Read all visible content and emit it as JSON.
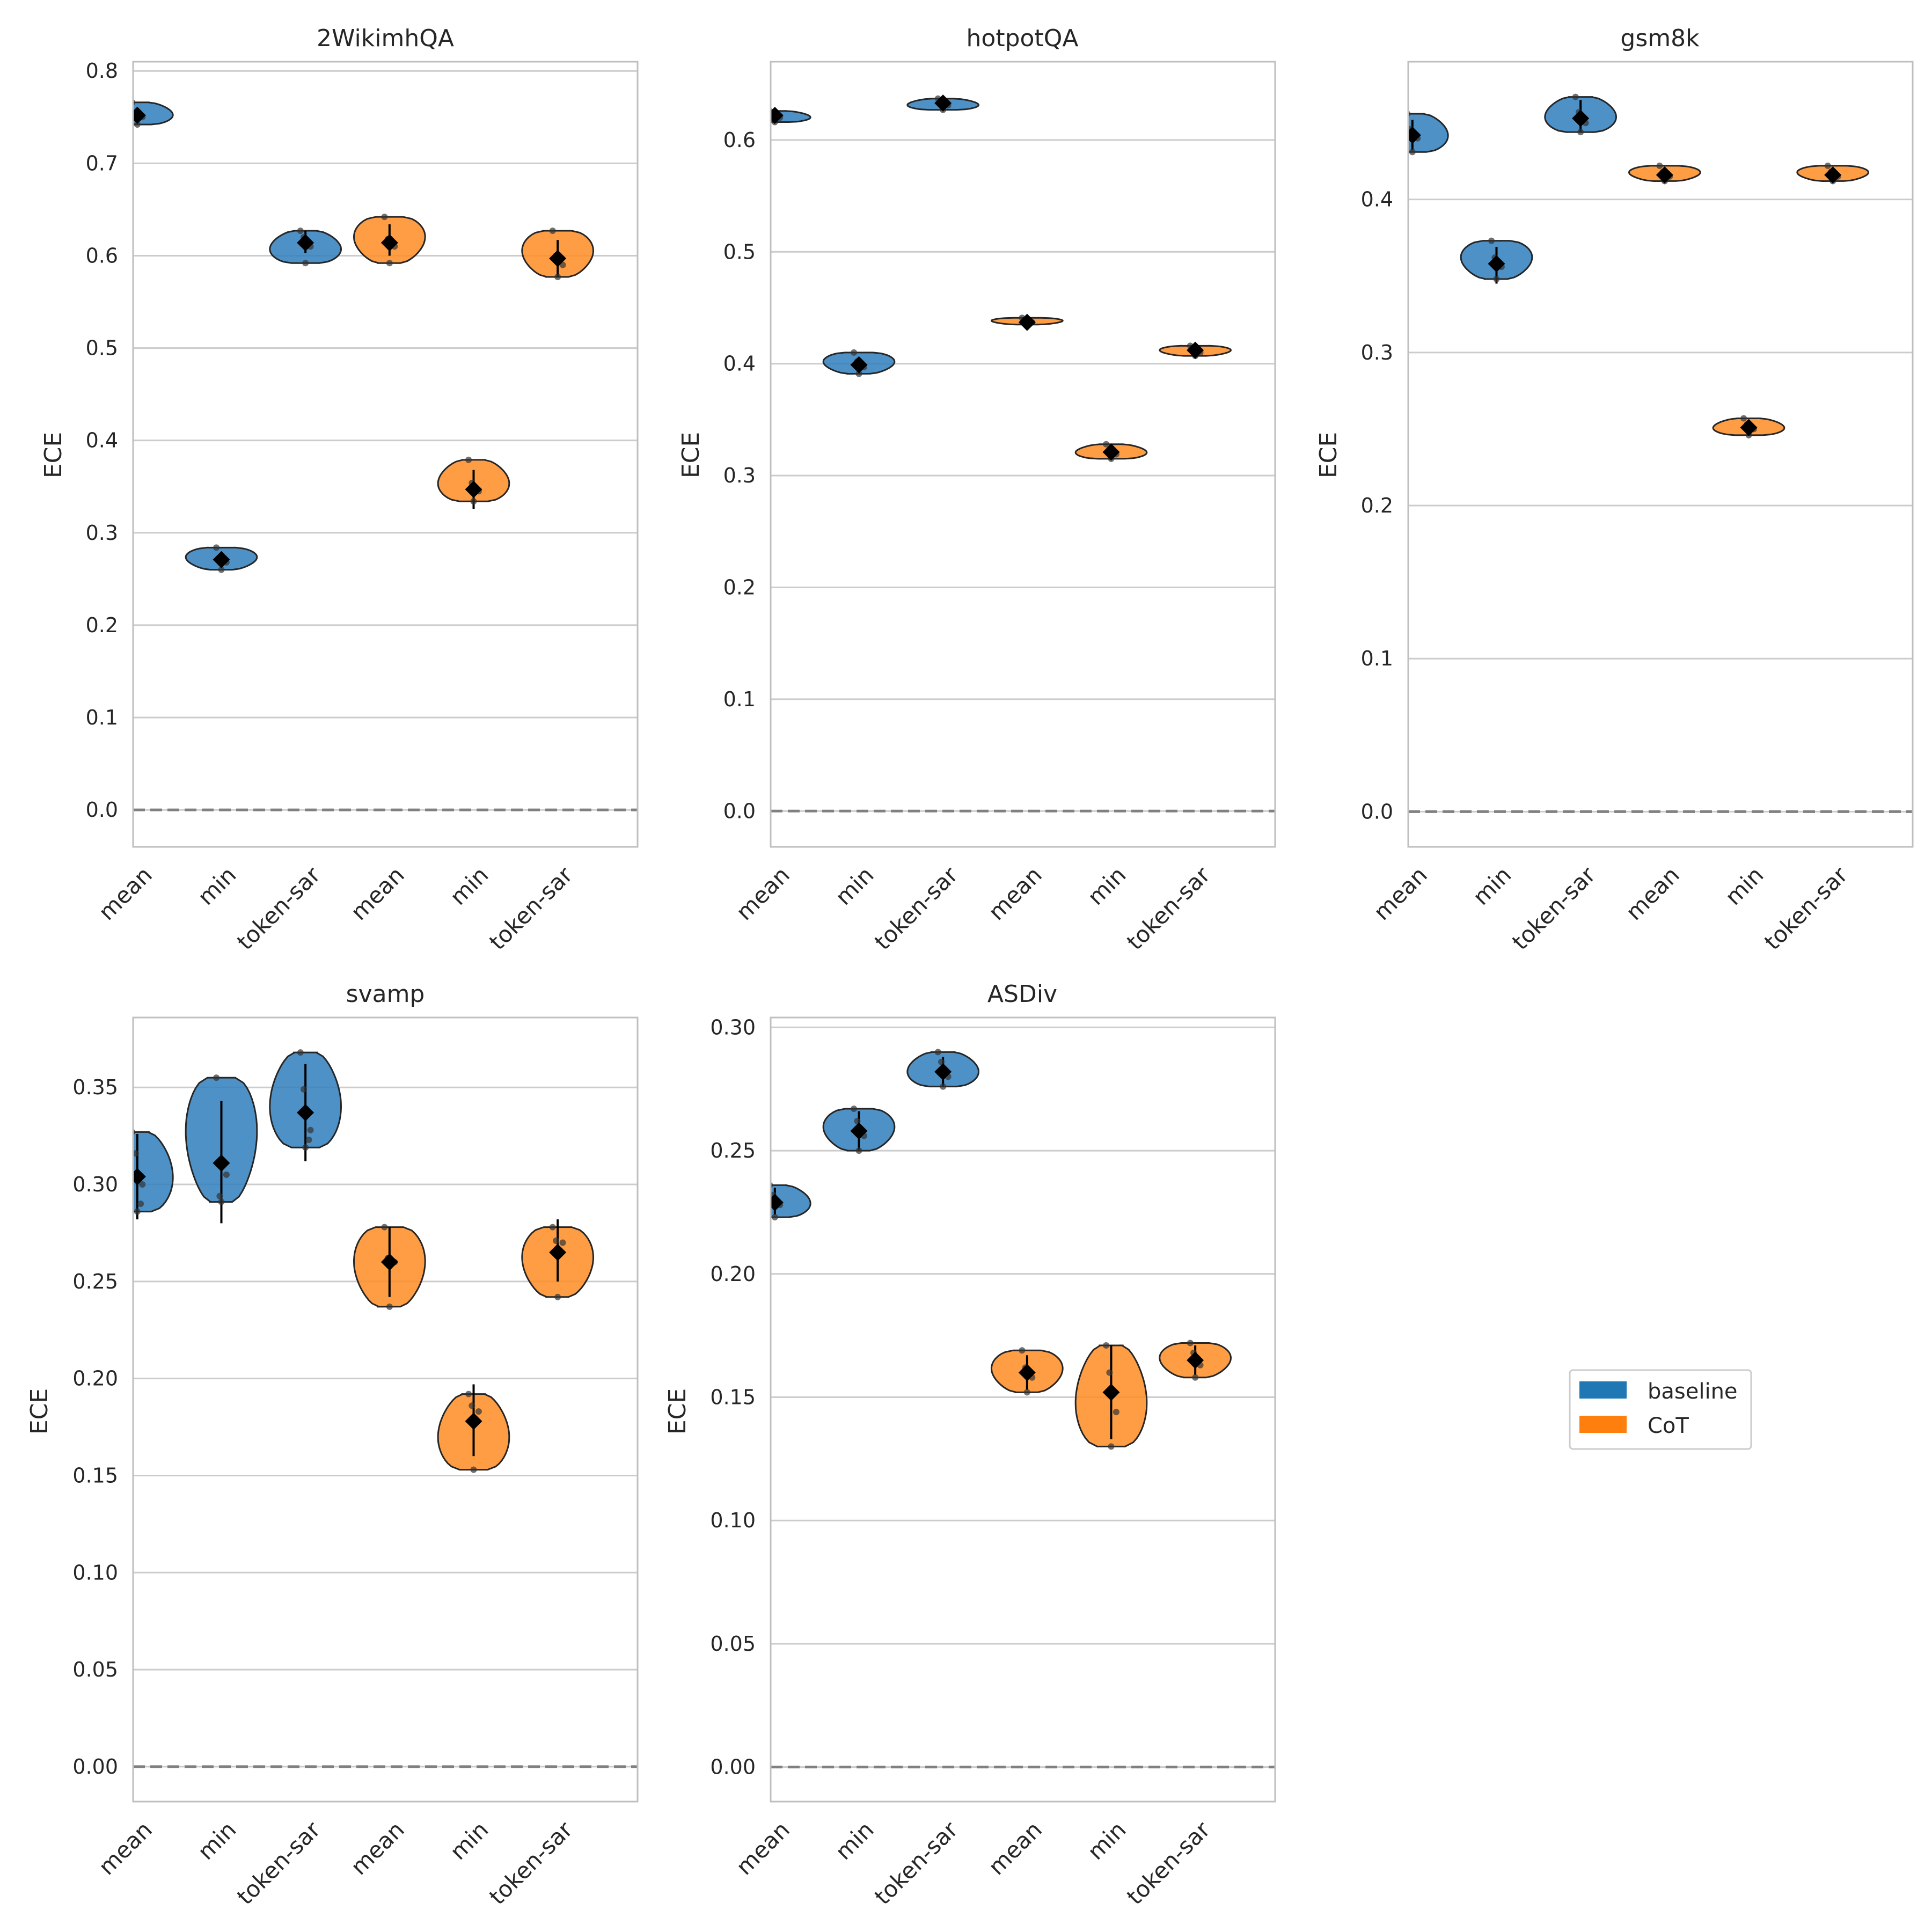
{
  "colors": {
    "baseline": "#2f7ebc",
    "cot": "#ff8c24",
    "grid": "#cccccc",
    "frame": "#bfbfbf",
    "zero_line": "#808080",
    "marker": "#000000"
  },
  "legend": {
    "placement": "right",
    "items": [
      {
        "label": "baseline",
        "color": "#1f77b4"
      },
      {
        "label": "CoT",
        "color": "#ff7f0e"
      }
    ]
  },
  "chart_data": [
    {
      "type": "violin",
      "title": "2WikimhQA",
      "ylabel": "ECE",
      "ylim": [
        -0.04,
        0.81
      ],
      "yticks": [
        "0.0",
        "0.1",
        "0.2",
        "0.3",
        "0.4",
        "0.5",
        "0.6",
        "0.7",
        "0.8"
      ],
      "categories": [
        "mean",
        "min",
        "token-sar",
        "mean",
        "min",
        "token-sar"
      ],
      "groups": [
        "baseline",
        "baseline",
        "baseline",
        "CoT",
        "CoT",
        "CoT"
      ],
      "zero_line": true,
      "grid": "y",
      "violins": [
        {
          "mean": 0.752,
          "min": 0.742,
          "max": 0.766,
          "err_low": 0.744,
          "err_high": 0.76,
          "points": [
            0.766,
            0.742,
            0.75,
            0.755
          ]
        },
        {
          "mean": 0.271,
          "min": 0.26,
          "max": 0.284,
          "err_low": 0.263,
          "err_high": 0.279,
          "points": [
            0.284,
            0.26,
            0.268,
            0.273
          ]
        },
        {
          "mean": 0.614,
          "min": 0.592,
          "max": 0.627,
          "err_low": 0.603,
          "err_high": 0.627,
          "points": [
            0.627,
            0.592,
            0.61,
            0.62
          ]
        },
        {
          "mean": 0.614,
          "min": 0.592,
          "max": 0.642,
          "err_low": 0.6,
          "err_high": 0.634,
          "points": [
            0.642,
            0.592,
            0.61,
            0.618
          ]
        },
        {
          "mean": 0.347,
          "min": 0.334,
          "max": 0.379,
          "err_low": 0.326,
          "err_high": 0.368,
          "points": [
            0.379,
            0.334,
            0.345,
            0.354
          ]
        },
        {
          "mean": 0.597,
          "min": 0.577,
          "max": 0.627,
          "err_low": 0.577,
          "err_high": 0.617,
          "points": [
            0.627,
            0.577,
            0.59,
            0.6
          ]
        }
      ]
    },
    {
      "type": "violin",
      "title": "hotpotQA",
      "ylabel": "ECE",
      "ylim": [
        -0.032,
        0.67
      ],
      "yticks": [
        "0.0",
        "0.1",
        "0.2",
        "0.3",
        "0.4",
        "0.5",
        "0.6"
      ],
      "categories": [
        "mean",
        "min",
        "token-sar",
        "mean",
        "min",
        "token-sar"
      ],
      "groups": [
        "baseline",
        "baseline",
        "baseline",
        "CoT",
        "CoT",
        "CoT"
      ],
      "zero_line": true,
      "grid": "y",
      "violins": [
        {
          "mean": 0.622,
          "min": 0.616,
          "max": 0.626,
          "err_low": 0.617,
          "err_high": 0.626,
          "points": [
            0.626,
            0.616,
            0.62,
            0.623
          ]
        },
        {
          "mean": 0.399,
          "min": 0.391,
          "max": 0.41,
          "err_low": 0.393,
          "err_high": 0.406,
          "points": [
            0.41,
            0.391,
            0.397,
            0.402
          ]
        },
        {
          "mean": 0.633,
          "min": 0.627,
          "max": 0.637,
          "err_low": 0.628,
          "err_high": 0.637,
          "points": [
            0.637,
            0.627,
            0.631,
            0.635
          ]
        },
        {
          "mean": 0.437,
          "min": 0.435,
          "max": 0.441,
          "err_low": 0.435,
          "err_high": 0.44,
          "points": [
            0.441,
            0.435,
            0.437,
            0.438
          ]
        },
        {
          "mean": 0.321,
          "min": 0.315,
          "max": 0.328,
          "err_low": 0.316,
          "err_high": 0.326,
          "points": [
            0.328,
            0.315,
            0.319,
            0.323
          ]
        },
        {
          "mean": 0.412,
          "min": 0.407,
          "max": 0.416,
          "err_low": 0.408,
          "err_high": 0.416,
          "points": [
            0.416,
            0.407,
            0.41,
            0.414
          ]
        }
      ]
    },
    {
      "type": "violin",
      "title": "gsm8k",
      "ylabel": "ECE",
      "ylim": [
        -0.023,
        0.49
      ],
      "yticks": [
        "0.0",
        "0.1",
        "0.2",
        "0.3",
        "0.4"
      ],
      "categories": [
        "mean",
        "min",
        "token-sar",
        "mean",
        "min",
        "token-sar"
      ],
      "groups": [
        "baseline",
        "baseline",
        "baseline",
        "CoT",
        "CoT",
        "CoT"
      ],
      "zero_line": true,
      "grid": "y",
      "violins": [
        {
          "mean": 0.442,
          "min": 0.431,
          "max": 0.456,
          "err_low": 0.432,
          "err_high": 0.452,
          "points": [
            0.456,
            0.431,
            0.44,
            0.446
          ]
        },
        {
          "mean": 0.358,
          "min": 0.348,
          "max": 0.373,
          "err_low": 0.345,
          "err_high": 0.369,
          "points": [
            0.373,
            0.348,
            0.356,
            0.362
          ]
        },
        {
          "mean": 0.453,
          "min": 0.444,
          "max": 0.467,
          "err_low": 0.444,
          "err_high": 0.465,
          "points": [
            0.467,
            0.444,
            0.45,
            0.457
          ]
        },
        {
          "mean": 0.416,
          "min": 0.412,
          "max": 0.422,
          "err_low": 0.412,
          "err_high": 0.421,
          "points": [
            0.422,
            0.412,
            0.415,
            0.418
          ]
        },
        {
          "mean": 0.251,
          "min": 0.246,
          "max": 0.257,
          "err_low": 0.246,
          "err_high": 0.256,
          "points": [
            0.257,
            0.246,
            0.25,
            0.253
          ]
        },
        {
          "mean": 0.416,
          "min": 0.412,
          "max": 0.422,
          "err_low": 0.412,
          "err_high": 0.421,
          "points": [
            0.422,
            0.412,
            0.415,
            0.418
          ]
        }
      ]
    },
    {
      "type": "violin",
      "title": "svamp",
      "ylabel": "ECE",
      "ylim": [
        -0.018,
        0.386
      ],
      "yticks": [
        "0.00",
        "0.05",
        "0.10",
        "0.15",
        "0.20",
        "0.25",
        "0.30",
        "0.35"
      ],
      "categories": [
        "mean",
        "min",
        "token-sar",
        "mean",
        "min",
        "token-sar"
      ],
      "groups": [
        "baseline",
        "baseline",
        "baseline",
        "CoT",
        "CoT",
        "CoT"
      ],
      "zero_line": true,
      "grid": "y",
      "violins": [
        {
          "mean": 0.304,
          "min": 0.286,
          "max": 0.327,
          "err_low": 0.282,
          "err_high": 0.326,
          "points": [
            0.327,
            0.286,
            0.3,
            0.316,
            0.29
          ]
        },
        {
          "mean": 0.311,
          "min": 0.291,
          "max": 0.355,
          "err_low": 0.28,
          "err_high": 0.343,
          "points": [
            0.355,
            0.291,
            0.305,
            0.294
          ]
        },
        {
          "mean": 0.337,
          "min": 0.319,
          "max": 0.368,
          "err_low": 0.312,
          "err_high": 0.362,
          "points": [
            0.368,
            0.319,
            0.328,
            0.349,
            0.323
          ]
        },
        {
          "mean": 0.26,
          "min": 0.237,
          "max": 0.278,
          "err_low": 0.242,
          "err_high": 0.278,
          "points": [
            0.278,
            0.237,
            0.26,
            0.262
          ]
        },
        {
          "mean": 0.178,
          "min": 0.153,
          "max": 0.192,
          "err_low": 0.16,
          "err_high": 0.197,
          "points": [
            0.192,
            0.153,
            0.183,
            0.186
          ]
        },
        {
          "mean": 0.265,
          "min": 0.242,
          "max": 0.278,
          "err_low": 0.25,
          "err_high": 0.282,
          "points": [
            0.278,
            0.242,
            0.27,
            0.271
          ]
        }
      ]
    },
    {
      "type": "violin",
      "title": "ASDiv",
      "ylabel": "ECE",
      "ylim": [
        -0.014,
        0.304
      ],
      "yticks": [
        "0.00",
        "0.05",
        "0.10",
        "0.15",
        "0.20",
        "0.25",
        "0.30"
      ],
      "categories": [
        "mean",
        "min",
        "token-sar",
        "mean",
        "min",
        "token-sar"
      ],
      "groups": [
        "baseline",
        "baseline",
        "baseline",
        "CoT",
        "CoT",
        "CoT"
      ],
      "zero_line": true,
      "grid": "y",
      "violins": [
        {
          "mean": 0.229,
          "min": 0.223,
          "max": 0.236,
          "err_low": 0.224,
          "err_high": 0.235,
          "points": [
            0.236,
            0.223,
            0.228,
            0.232
          ]
        },
        {
          "mean": 0.258,
          "min": 0.25,
          "max": 0.267,
          "err_low": 0.25,
          "err_high": 0.266,
          "points": [
            0.267,
            0.25,
            0.256,
            0.262
          ]
        },
        {
          "mean": 0.282,
          "min": 0.276,
          "max": 0.29,
          "err_low": 0.276,
          "err_high": 0.288,
          "points": [
            0.29,
            0.276,
            0.28,
            0.286
          ]
        },
        {
          "mean": 0.16,
          "min": 0.152,
          "max": 0.169,
          "err_low": 0.153,
          "err_high": 0.167,
          "points": [
            0.169,
            0.152,
            0.158,
            0.162
          ]
        },
        {
          "mean": 0.152,
          "min": 0.13,
          "max": 0.171,
          "err_low": 0.133,
          "err_high": 0.171,
          "points": [
            0.171,
            0.13,
            0.144,
            0.16
          ]
        },
        {
          "mean": 0.165,
          "min": 0.158,
          "max": 0.172,
          "err_low": 0.159,
          "err_high": 0.171,
          "points": [
            0.172,
            0.158,
            0.163,
            0.168
          ]
        }
      ]
    }
  ]
}
